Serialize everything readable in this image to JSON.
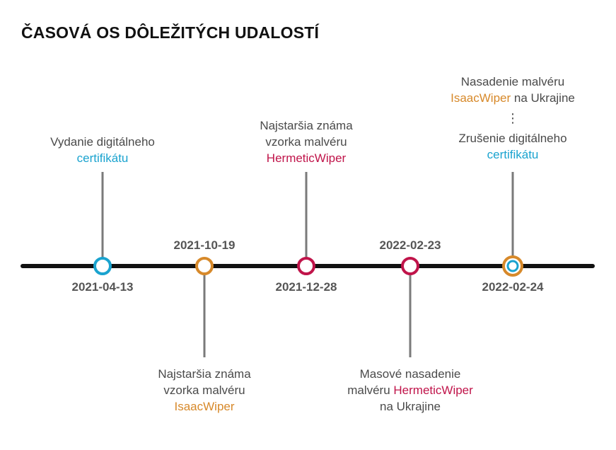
{
  "title": "ČASOVÁ OS DÔLEŽITÝCH UDALOSTÍ",
  "colors": {
    "blue": "#1aa3cf",
    "orange": "#d7892a",
    "red": "#c0144a",
    "axis": "#111111",
    "connector": "#7a7a7a"
  },
  "events": [
    {
      "date": "2021-04-13",
      "color": "blue",
      "label_line1": "Vydanie digitálneho",
      "label_line2_hl": "certifikátu"
    },
    {
      "date": "2021-10-19",
      "color": "orange",
      "label_line1": "Najstaršia známa",
      "label_line2": "vzorka malvéru",
      "label_line3_hl": "IsaacWiper"
    },
    {
      "date": "2021-12-28",
      "color": "red",
      "label_line1": "Najstaršia známa",
      "label_line2": "vzorka malvéru",
      "label_line3_hl": "HermeticWiper"
    },
    {
      "date": "2022-02-23",
      "color": "red",
      "label_line1": "Masové nasadenie",
      "label_line2_pre": "malvéru ",
      "label_line2_hl": "HermeticWiper",
      "label_line3": "na Ukrajine"
    },
    {
      "date": "2022-02-24",
      "color": "orange+blue",
      "top_line1": "Nasadenie malvéru",
      "top_line2_hl": "IsaacWiper",
      "top_line2_post": " na Ukrajine",
      "ellipsis": "⋮",
      "label_line1": "Zrušenie digitálneho",
      "label_line2_hl": "certifikátu"
    }
  ]
}
